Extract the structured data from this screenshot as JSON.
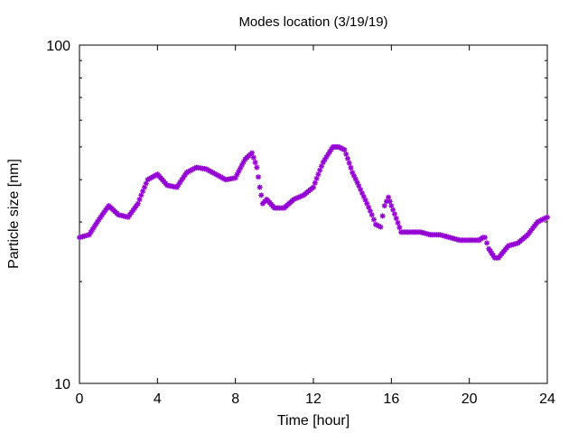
{
  "chart_data": {
    "type": "scatter",
    "title": "Modes location (3/19/19)",
    "xlabel": "Time [hour]",
    "ylabel": "Particle size [nm]",
    "xlim": [
      0,
      24
    ],
    "ylim": [
      10,
      100
    ],
    "yscale": "log",
    "xticks": [
      0,
      4,
      8,
      12,
      16,
      20,
      24
    ],
    "xtick_labels": [
      "0",
      "4",
      "8",
      "12",
      "16",
      "20",
      "24"
    ],
    "yticks": [
      10,
      100
    ],
    "ytick_labels": [
      "10",
      "100"
    ],
    "grid": false,
    "marker_color": "#9400D3",
    "series": [
      {
        "x": [
          0.0,
          0.5,
          1.0,
          1.5,
          2.0,
          2.5,
          3.0,
          3.5,
          4.0,
          4.5,
          5.0,
          5.5,
          6.0,
          6.5,
          7.0,
          7.5,
          8.0,
          8.5,
          8.85,
          9.1,
          9.25,
          9.4,
          9.6,
          10.0,
          10.5,
          11.0,
          11.5,
          12.0,
          12.5,
          13.0,
          13.3,
          13.6,
          14.0,
          14.5,
          15.0,
          15.2,
          15.45,
          15.65,
          15.85,
          16.0,
          16.5,
          17.0,
          17.5,
          18.0,
          18.5,
          19.0,
          19.5,
          20.0,
          20.5,
          20.7,
          20.8,
          21.0,
          21.3,
          21.5,
          22.0,
          22.5,
          23.0,
          23.5,
          24.0
        ],
        "y": [
          27,
          27.5,
          30.5,
          33.5,
          31.5,
          31,
          34,
          40,
          41.5,
          38.5,
          38,
          42,
          43.5,
          43,
          41.5,
          40,
          40.5,
          46,
          48,
          43.5,
          38,
          34,
          35,
          33,
          33,
          35,
          36,
          38,
          45,
          50,
          50,
          49,
          42,
          36.5,
          31.5,
          29.5,
          29,
          33.5,
          35.5,
          33.5,
          28,
          28,
          28,
          27.5,
          27.5,
          27,
          26.5,
          26.5,
          26.5,
          27,
          27,
          25,
          23.5,
          23.5,
          25.5,
          26,
          27.5,
          30,
          31
        ]
      }
    ]
  }
}
